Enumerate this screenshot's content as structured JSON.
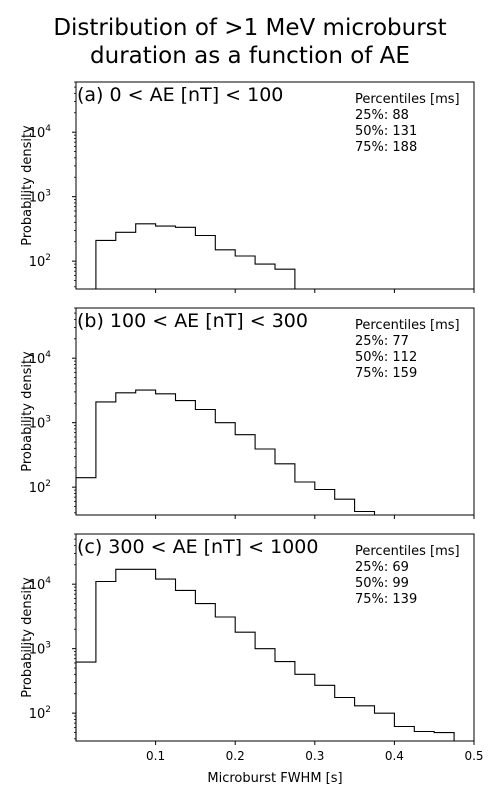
{
  "title_lines": [
    "Distribution of >1 MeV microburst",
    "duration as a function of AE"
  ],
  "chart_data": {
    "type": "histogram",
    "xlabel": "Microburst FWHM [s]",
    "ylabel": "Probability density",
    "xlim": [
      0,
      0.5
    ],
    "ylim": [
      37,
      60000
    ],
    "yscale": "log",
    "x_ticks": [
      0.1,
      0.2,
      0.3,
      0.4,
      0.5
    ],
    "x_tick_labels": [
      "0.1",
      "0.2",
      "0.3",
      "0.4",
      "0.5"
    ],
    "y_ticks": [
      100,
      1000,
      10000
    ],
    "y_tick_exponents": [
      "2",
      "3",
      "4"
    ],
    "bin_edges": [
      0,
      0.025,
      0.05,
      0.075,
      0.1,
      0.125,
      0.15,
      0.175,
      0.2,
      0.225,
      0.25,
      0.275,
      0.3,
      0.325,
      0.35,
      0.375,
      0.4,
      0.425,
      0.45,
      0.475,
      0.5
    ],
    "panels": [
      {
        "label": "(a) 0 < AE [nT] < 100",
        "percentiles_title": "Percentiles [ms]",
        "percentiles": [
          "25%: 88",
          "50%: 131",
          "75%: 188"
        ],
        "values": [
          0,
          210,
          280,
          380,
          350,
          335,
          250,
          150,
          120,
          90,
          75,
          0,
          0,
          0,
          0,
          0,
          0,
          0,
          0,
          0
        ]
      },
      {
        "label": "(b) 100 < AE [nT] < 300",
        "percentiles_title": "Percentiles [ms]",
        "percentiles": [
          "25%: 77",
          "50%: 112",
          "75%: 159"
        ],
        "values": [
          140,
          2100,
          2900,
          3200,
          2800,
          2200,
          1600,
          1000,
          650,
          390,
          230,
          120,
          92,
          65,
          42,
          37,
          0,
          0,
          0,
          0
        ]
      },
      {
        "label": "(c) 300 < AE [nT] < 1000",
        "percentiles_title": "Percentiles [ms]",
        "percentiles": [
          "25%: 69",
          "50%: 99",
          "75%: 139"
        ],
        "values": [
          620,
          11000,
          17000,
          17000,
          12000,
          8000,
          5000,
          3100,
          1800,
          1000,
          630,
          400,
          270,
          175,
          130,
          100,
          62,
          52,
          50,
          0
        ]
      }
    ]
  }
}
